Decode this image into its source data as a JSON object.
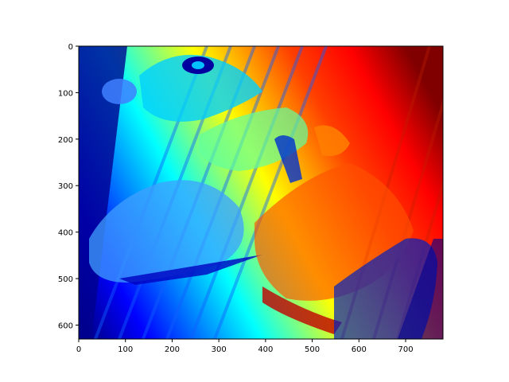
{
  "chart_data": {
    "type": "heatmap",
    "title": "",
    "xlabel": "",
    "ylabel": "",
    "colormap": "jet",
    "image_width": 780,
    "image_height": 630,
    "xlim": [
      0,
      780
    ],
    "ylim": [
      630,
      0
    ],
    "x_ticks": [
      0,
      100,
      200,
      300,
      400,
      500,
      600,
      700
    ],
    "y_ticks": [
      0,
      100,
      200,
      300,
      400,
      500,
      600
    ],
    "grid": false,
    "legend": "none",
    "colors": {
      "dark_blue": "#00008f",
      "blue": "#0000ff",
      "cyan": "#00ffff",
      "yellow": "#ffff00",
      "red": "#ff0000",
      "dark_red": "#800000"
    }
  }
}
